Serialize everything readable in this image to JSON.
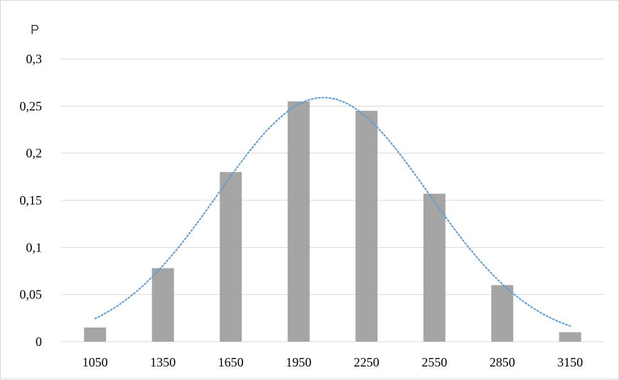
{
  "chart_data": {
    "type": "bar",
    "title": "",
    "xlabel": "",
    "ylabel": "P",
    "categories": [
      "1050",
      "1350",
      "1650",
      "1950",
      "2250",
      "2550",
      "2850",
      "3150"
    ],
    "values": [
      0.015,
      0.078,
      0.18,
      0.255,
      0.245,
      0.157,
      0.06,
      0.01
    ],
    "ylim": [
      0,
      0.3
    ],
    "yticks": [
      0,
      0.05,
      0.1,
      0.15,
      0.2,
      0.25,
      0.3
    ],
    "ytick_labels": [
      "0",
      "0,05",
      "0,1",
      "0,15",
      "0,2",
      "0,25",
      "0,3"
    ],
    "grid": true,
    "legend": "none",
    "trendline": {
      "style": "dotted",
      "type": "normal-curve",
      "peak_x": 2060,
      "peak_y": 0.259
    },
    "colors": {
      "bar": "#a5a5a5",
      "trendline": "#5b9bd5",
      "grid": "#d9d9d9"
    }
  }
}
